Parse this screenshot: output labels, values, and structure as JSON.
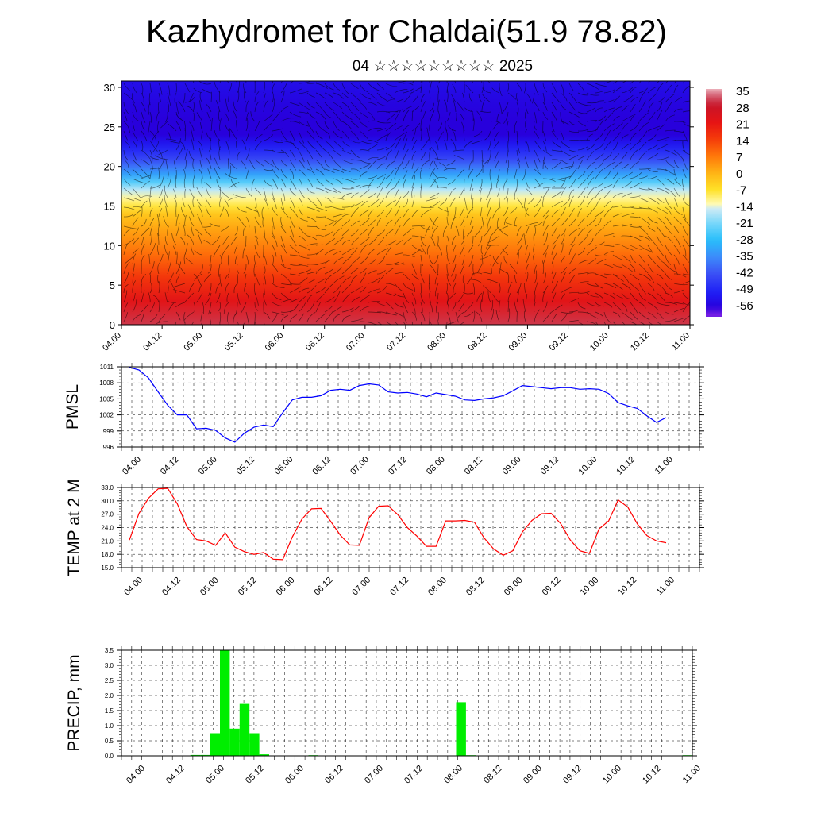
{
  "header": {
    "title": "Kazhydromet for Chaldai(51.9 78.82)",
    "subtitle": "04 ☆☆☆☆☆☆☆☆☆ 2025"
  },
  "colors": {
    "pmsl_line": "#0000ff",
    "temp_line": "#ff0000",
    "precip_bar": "#00ee00",
    "grid": "#000000"
  },
  "chart_data": [
    {
      "type": "heatmap",
      "title": "",
      "xlabel": "",
      "ylabel": "",
      "x_tick_labels": [
        "04.00",
        "04.12",
        "05.00",
        "05.12",
        "06.00",
        "06.12",
        "07.00",
        "07.12",
        "08.00",
        "08.12",
        "09.00",
        "09.12",
        "10.00",
        "10.12",
        "11.00"
      ],
      "y_ticks": [
        0,
        5,
        10,
        15,
        20,
        25,
        30
      ],
      "ylim": [
        0,
        30.8
      ],
      "colorbar_labels": [
        "35",
        "28",
        "21",
        "14",
        "7",
        "0",
        "-7",
        "-14",
        "-21",
        "-28",
        "-35",
        "-42",
        "-49",
        "-56"
      ],
      "field_profile": {
        "levels": [
          0,
          3,
          6,
          9,
          12,
          14,
          15,
          16,
          17,
          18,
          19,
          20,
          21,
          22,
          23,
          24,
          26,
          28,
          30.8
        ],
        "values": [
          30,
          22,
          15,
          8,
          2,
          -3,
          -8,
          -12,
          -16,
          -24,
          -32,
          -38,
          -44,
          -48,
          -52,
          -56,
          -56,
          -55,
          -53
        ]
      },
      "overlay": "wind streamlines"
    },
    {
      "type": "line",
      "ylabel": "PMSL",
      "x_tick_labels": [
        "04.00",
        "04.12",
        "05.00",
        "05.12",
        "06.00",
        "06.12",
        "07.00",
        "07.12",
        "08.00",
        "08.12",
        "09.00",
        "09.12",
        "10.00",
        "10.12",
        "11.00"
      ],
      "y_tick_labels": [
        "996",
        "999",
        "1002",
        "1005",
        "1008",
        "1011"
      ],
      "ylim": [
        996,
        1011
      ],
      "grid": true,
      "series": [
        {
          "values": [
            1010.9,
            1010.4,
            1008.9,
            1006.3,
            1003.8,
            1002.0,
            1002.0,
            999.4,
            999.5,
            999.1,
            997.7,
            996.9,
            998.6,
            999.7,
            1000.1,
            999.8,
            1002.4,
            1004.8,
            1005.3,
            1005.3,
            1005.6,
            1006.6,
            1006.8,
            1006.6,
            1007.5,
            1007.8,
            1007.6,
            1006.3,
            1006.1,
            1006.2,
            1005.9,
            1005.4,
            1006.1,
            1005.8,
            1005.5,
            1004.8,
            1004.7,
            1005.0,
            1005.2,
            1005.6,
            1006.5,
            1007.5,
            1007.3,
            1007.1,
            1006.9,
            1007.1,
            1007.1,
            1006.8,
            1006.9,
            1006.8,
            1006.0,
            1004.3,
            1003.7,
            1003.2,
            1001.8,
            1000.6,
            1001.5
          ]
        }
      ]
    },
    {
      "type": "line",
      "ylabel": "TEMP at 2 M",
      "x_tick_labels": [
        "04.00",
        "04.12",
        "05.00",
        "05.12",
        "06.00",
        "06.12",
        "07.00",
        "07.12",
        "08.00",
        "08.12",
        "09.00",
        "09.12",
        "10.00",
        "10.12",
        "11.00"
      ],
      "y_tick_labels": [
        "15.0",
        "18.0",
        "21.0",
        "24.0",
        "27.0",
        "30.0",
        "33.0"
      ],
      "ylim": [
        15,
        33
      ],
      "grid": true,
      "series": [
        {
          "values": [
            21.2,
            27.2,
            30.6,
            32.7,
            32.8,
            29.3,
            24.2,
            21.3,
            21.0,
            20.0,
            22.8,
            19.6,
            18.6,
            18.0,
            18.4,
            16.9,
            16.8,
            21.9,
            25.9,
            28.2,
            28.3,
            25.4,
            22.3,
            20.1,
            20.0,
            26.2,
            28.8,
            28.9,
            26.9,
            24.0,
            22.1,
            19.8,
            19.8,
            25.5,
            25.5,
            25.6,
            25.2,
            21.7,
            19.2,
            17.8,
            18.8,
            23.0,
            25.6,
            27.1,
            27.2,
            24.9,
            21.2,
            18.8,
            18.2,
            23.7,
            25.5,
            30.2,
            28.6,
            24.8,
            22.2,
            21.0,
            20.6
          ]
        }
      ]
    },
    {
      "type": "bar",
      "ylabel": "PRECIP, mm",
      "x_tick_labels": [
        "04.00",
        "04.12",
        "05.00",
        "05.12",
        "06.00",
        "06.12",
        "07.00",
        "07.12",
        "08.00",
        "08.12",
        "09.00",
        "09.12",
        "10.00",
        "10.12",
        "11.00"
      ],
      "y_tick_labels": [
        "0.0",
        "0.5",
        "1.0",
        "1.5",
        "2.0",
        "2.5",
        "3.0",
        "3.5"
      ],
      "ylim": [
        0,
        3.5
      ],
      "grid": true,
      "series": [
        {
          "values": [
            0,
            0,
            0,
            0,
            0,
            0,
            0,
            0.03,
            0.03,
            0.75,
            3.5,
            0.9,
            1.72,
            0.75,
            0.05,
            0,
            0,
            0,
            0,
            0.02,
            0,
            0,
            0,
            0,
            0,
            0,
            0,
            0,
            0,
            0,
            0,
            0,
            0,
            0,
            1.78,
            0.02,
            0,
            0,
            0,
            0,
            0,
            0,
            0,
            0,
            0,
            0,
            0,
            0,
            0,
            0,
            0,
            0,
            0,
            0,
            0,
            0,
            0,
            0.02
          ]
        }
      ]
    }
  ]
}
